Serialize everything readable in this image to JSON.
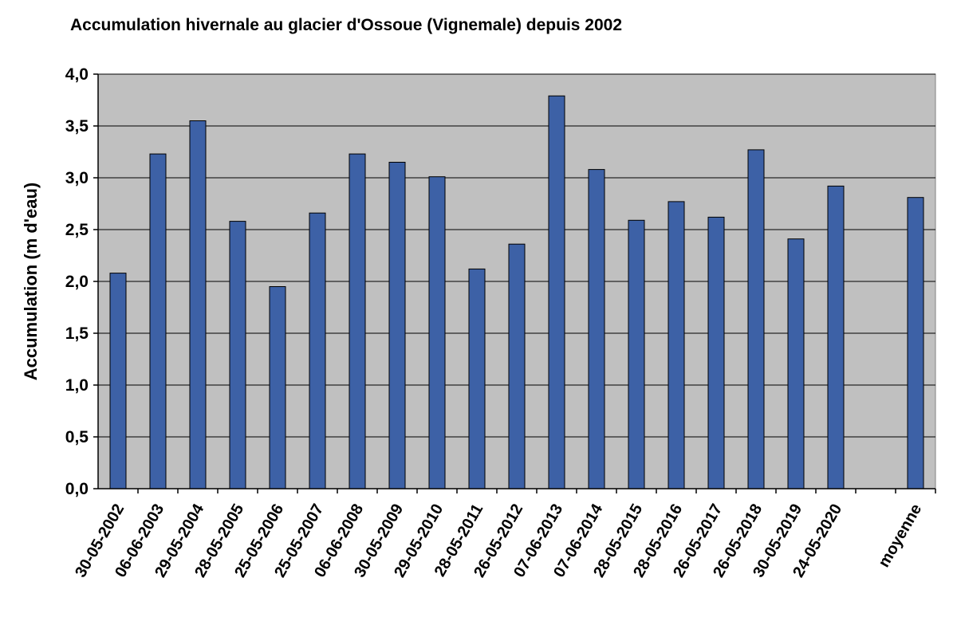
{
  "chart_data": {
    "type": "bar",
    "title": "Accumulation hivernale au glacier d'Ossoue (Vignemale) depuis 2002",
    "xlabel": "",
    "ylabel": "Accumulation (m d'eau)",
    "ylim": [
      0,
      4.0
    ],
    "yticks": [
      "0,0",
      "0,5",
      "1,0",
      "1,5",
      "2,0",
      "2,5",
      "3,0",
      "3,5",
      "4,0"
    ],
    "grid": true,
    "legend": "none",
    "categories": [
      "30-05-2002",
      "06-06-2003",
      "29-05-2004",
      "28-05-2005",
      "25-05-2006",
      "25-05-2007",
      "06-06-2008",
      "30-05-2009",
      "29-05-2010",
      "28-05-2011",
      "26-05-2012",
      "07-06-2013",
      "07-06-2014",
      "28-05-2015",
      "28-05-2016",
      "26-05-2017",
      "26-05-2018",
      "30-05-2019",
      "24-05-2020",
      "",
      "moyenne"
    ],
    "values": [
      2.08,
      3.23,
      3.55,
      2.58,
      1.95,
      2.66,
      3.23,
      3.15,
      3.01,
      2.12,
      2.36,
      3.79,
      3.08,
      2.59,
      2.77,
      2.62,
      3.27,
      2.41,
      2.92,
      null,
      2.81
    ],
    "colors": {
      "bar": "#3d61a6",
      "bar_edge": "#000000",
      "plot_bg": "#c0c0c0",
      "grid": "#000000"
    }
  }
}
